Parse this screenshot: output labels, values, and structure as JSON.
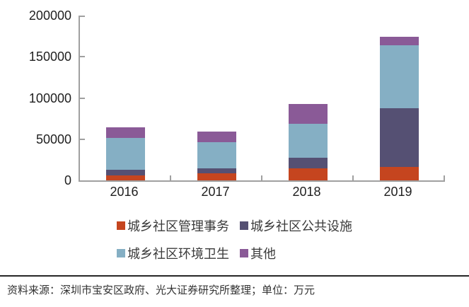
{
  "chart_data": {
    "type": "bar",
    "stacked": true,
    "title": "",
    "xlabel": "",
    "ylabel": "",
    "categories": [
      "2016",
      "2017",
      "2018",
      "2019"
    ],
    "series": [
      {
        "name": "城乡社区管理事务",
        "color": "#C5451F",
        "values": [
          5700,
          8800,
          14800,
          16200
        ]
      },
      {
        "name": "城乡社区公共设施",
        "color": "#555073",
        "values": [
          7600,
          5800,
          12400,
          71200
        ]
      },
      {
        "name": "城乡社区环境卫生",
        "color": "#85AFC4",
        "values": [
          38500,
          31700,
          41800,
          76400
        ]
      },
      {
        "name": "其他",
        "color": "#8A5A97",
        "values": [
          12900,
          12900,
          23600,
          10600
        ]
      }
    ],
    "totals": [
      64700,
      59200,
      92600,
      174400
    ],
    "ylim": [
      0,
      200000
    ],
    "yticks": [
      0,
      50000,
      100000,
      150000,
      200000
    ],
    "ytick_labels": [
      "0",
      "50000",
      "100000",
      "150000",
      "200000"
    ],
    "grid": false,
    "legend_position": "bottom"
  },
  "footer": {
    "text": "资料来源：深圳市宝安区政府、光大证券研究所整理；单位：万元"
  },
  "colors": {
    "axis": "#A0A0A0",
    "tick_text": "#1f1f1f",
    "legend_text": "#3a3a3a",
    "footer_rule": "#262626",
    "background": "#ffffff"
  }
}
